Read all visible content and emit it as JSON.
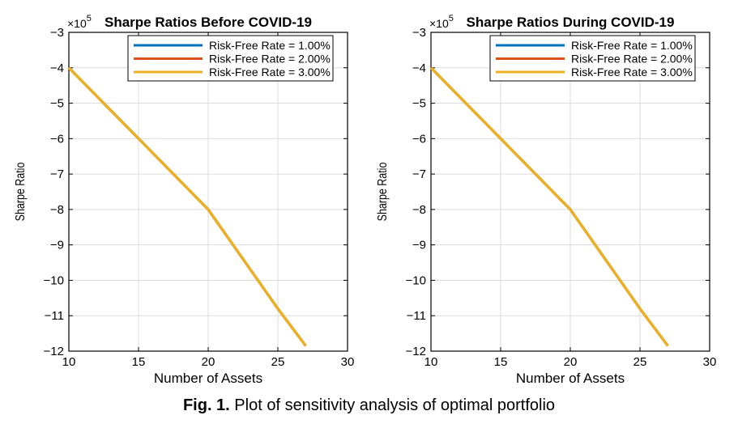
{
  "chart_data": [
    {
      "type": "line",
      "title": "Sharpe Ratios Before COVID-19",
      "xlabel": "Number of Assets",
      "ylabel": "Sharpe Ratio",
      "y_exponent_label": "×10",
      "y_exponent": "5",
      "xlim": [
        10,
        30
      ],
      "ylim": [
        -12,
        -3
      ],
      "xticks": [
        10,
        15,
        20,
        25,
        30
      ],
      "yticks": [
        -3,
        -4,
        -5,
        -6,
        -7,
        -8,
        -9,
        -10,
        -11,
        -12
      ],
      "grid": true,
      "legend_position": "top-right",
      "x": [
        10,
        15,
        20,
        25,
        27
      ],
      "series": [
        {
          "name": "Risk-Free Rate = 1.00%",
          "color": "#0072BD",
          "values": [
            -4,
            -6,
            -8,
            -10.8,
            -11.85
          ]
        },
        {
          "name": "Risk-Free Rate = 2.00%",
          "color": "#D95319",
          "values": [
            -4,
            -6,
            -8,
            -10.8,
            -11.85
          ]
        },
        {
          "name": "Risk-Free Rate = 3.00%",
          "color": "#EDB120",
          "values": [
            -4,
            -6,
            -8,
            -10.8,
            -11.85
          ]
        }
      ]
    },
    {
      "type": "line",
      "title": "Sharpe Ratios During COVID-19",
      "xlabel": "Number of Assets",
      "ylabel": "Sharpe Ratio",
      "y_exponent_label": "×10",
      "y_exponent": "5",
      "xlim": [
        10,
        30
      ],
      "ylim": [
        -12,
        -3
      ],
      "xticks": [
        10,
        15,
        20,
        25,
        30
      ],
      "yticks": [
        -3,
        -4,
        -5,
        -6,
        -7,
        -8,
        -9,
        -10,
        -11,
        -12
      ],
      "grid": true,
      "legend_position": "top-right",
      "x": [
        10,
        15,
        20,
        25,
        27
      ],
      "series": [
        {
          "name": "Risk-Free Rate = 1.00%",
          "color": "#0072BD",
          "values": [
            -4,
            -6,
            -8,
            -10.8,
            -11.85
          ]
        },
        {
          "name": "Risk-Free Rate = 2.00%",
          "color": "#D95319",
          "values": [
            -4,
            -6,
            -8,
            -10.8,
            -11.85
          ]
        },
        {
          "name": "Risk-Free Rate = 3.00%",
          "color": "#EDB120",
          "values": [
            -4,
            -6,
            -8,
            -10.8,
            -11.85
          ]
        }
      ]
    }
  ],
  "caption": {
    "label": "Fig. 1.",
    "text": " Plot of sensitivity analysis of optimal portfolio"
  }
}
